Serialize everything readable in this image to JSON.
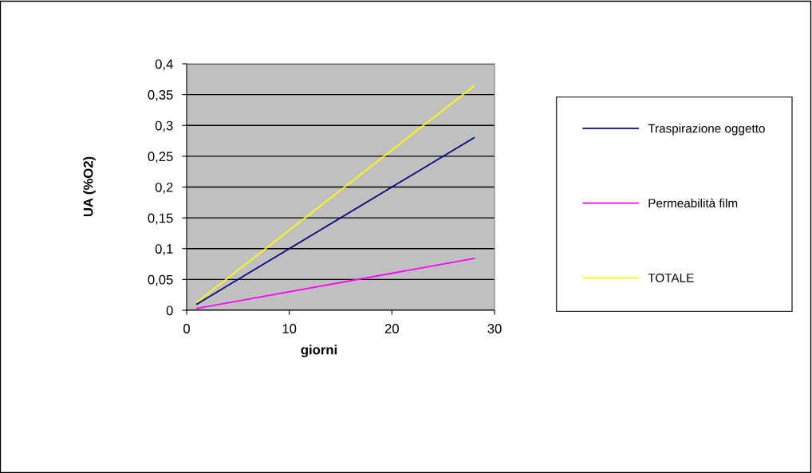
{
  "chart_data": {
    "type": "line",
    "xlabel": "giorni",
    "ylabel": "UA (%O2)",
    "xlim": [
      0,
      30
    ],
    "xticks": [
      0,
      10,
      20,
      30
    ],
    "ylim": [
      0,
      0.4
    ],
    "yticks": [
      0,
      {
        "value": 0.05,
        "label": "0,05"
      },
      {
        "value": 0.1,
        "label": "0,1"
      },
      {
        "value": 0.15,
        "label": "0,15"
      },
      {
        "value": 0.2,
        "label": "0,2"
      },
      {
        "value": 0.25,
        "label": "0,25"
      },
      {
        "value": 0.3,
        "label": "0,3"
      },
      {
        "value": 0.35,
        "label": "0,35"
      },
      {
        "value": 0.4,
        "label": "0,4"
      }
    ],
    "grid": "y",
    "legend": "right",
    "marker": "none",
    "line_style": "solid",
    "x": [
      1,
      28
    ],
    "series": [
      {
        "name": "Traspirazione oggetto",
        "color": "#000080",
        "values": [
          0.01,
          0.28
        ]
      },
      {
        "name": "Permeabilità film",
        "color": "#ff00ff",
        "values": [
          0.003,
          0.084
        ]
      },
      {
        "name": "TOTALE",
        "color": "#ffff00",
        "values": [
          0.013,
          0.364
        ]
      }
    ]
  }
}
